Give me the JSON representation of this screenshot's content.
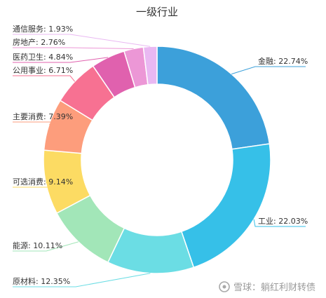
{
  "chart_data": {
    "type": "pie",
    "style": "donut",
    "title": "一级行业",
    "slices": [
      {
        "label": "金融",
        "value": 22.74,
        "text": "金融: 22.74%",
        "color": "#3ca0da"
      },
      {
        "label": "工业",
        "value": 22.03,
        "text": "工业: 22.03%",
        "color": "#36c0e8"
      },
      {
        "label": "原材料",
        "value": 12.35,
        "text": "原材料: 12.35%",
        "color": "#6bdde4"
      },
      {
        "label": "能源",
        "value": 10.11,
        "text": "能源: 10.11%",
        "color": "#a2e6b8"
      },
      {
        "label": "可选消费",
        "value": 9.14,
        "text": "可选消费: 9.14%",
        "color": "#fcdb63"
      },
      {
        "label": "主要消费",
        "value": 7.39,
        "text": "主要消费: 7.39%",
        "color": "#fd9d7c"
      },
      {
        "label": "公用事业",
        "value": 6.71,
        "text": "公用事业: 6.71%",
        "color": "#f77192"
      },
      {
        "label": "医药卫生",
        "value": 4.84,
        "text": "医药卫生: 4.84%",
        "color": "#e061ae"
      },
      {
        "label": "房地产",
        "value": 2.76,
        "text": "房地产: 2.76%",
        "color": "#ec97d6"
      },
      {
        "label": "通信服务",
        "value": 1.93,
        "text": "通信服务: 1.93%",
        "color": "#e9b8f2"
      }
    ]
  },
  "watermark": {
    "text": "雪球：躺红利财转债"
  }
}
